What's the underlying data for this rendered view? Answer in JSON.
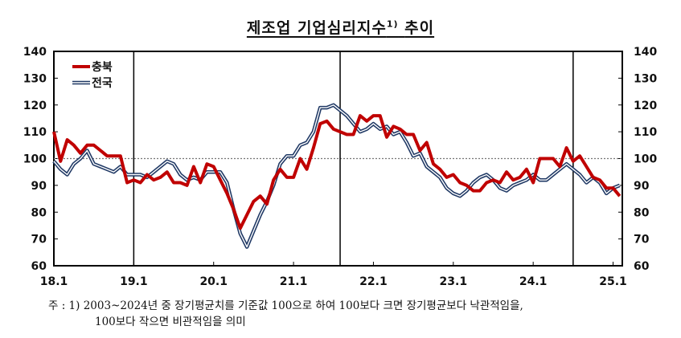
{
  "title": "제조업 기업심리지수",
  "title_superscript": "1)",
  "title_suffix": "추이",
  "legend": [
    {
      "name": "충북",
      "color": "#C00000"
    },
    {
      "name": "전국",
      "color": "#1F3864"
    }
  ],
  "footnote": {
    "prefix": "주 : 1)",
    "line1": "2003~2024년 중 장기평균치를 기준값 100으로 하여 100보다 크면 장기평균보다 낙관적임을,",
    "line2": "100보다 작으면 비관적임을 의미"
  },
  "chart_data": {
    "type": "line",
    "title": "제조업 기업심리지수 추이",
    "xlabel": "",
    "ylabel": "",
    "ylim": [
      60,
      140
    ],
    "yticks": [
      60,
      70,
      80,
      90,
      100,
      110,
      120,
      130,
      140
    ],
    "xtick_labels": [
      "18.1",
      "19.1",
      "20.1",
      "21.1",
      "22.1",
      "23.1",
      "24.1",
      "25.1"
    ],
    "reference_line": {
      "y": 100,
      "style": "dotted"
    },
    "vertical_markers": [
      "19.1",
      "21.8",
      "24.7"
    ],
    "grid": false,
    "legend_position": "upper-left",
    "x_start": "2018.01",
    "x_frequency": "monthly",
    "series": [
      {
        "name": "충북",
        "color": "#C00000",
        "values": [
          110,
          99,
          107,
          105,
          102,
          105,
          105,
          103,
          101,
          101,
          101,
          91,
          92,
          91,
          94,
          92,
          93,
          95,
          91,
          91,
          90,
          97,
          91,
          98,
          97,
          92,
          87,
          81,
          74,
          79,
          84,
          86,
          83,
          92,
          96,
          93,
          93,
          100,
          96,
          104,
          113,
          114,
          111,
          110,
          109,
          109,
          116,
          114,
          116,
          116,
          108,
          112,
          111,
          109,
          109,
          103,
          106,
          98,
          96,
          93,
          94,
          91,
          90,
          88,
          88,
          91,
          92,
          91,
          95,
          92,
          93,
          96,
          91,
          100,
          100,
          100,
          97,
          104,
          99,
          101,
          97,
          93,
          92,
          89,
          89,
          86
        ]
      },
      {
        "name": "전국",
        "color": "#1F3864",
        "values": [
          99,
          96,
          94,
          98,
          100,
          103,
          98,
          97,
          96,
          95,
          97,
          94,
          94,
          94,
          93,
          95,
          97,
          99,
          98,
          94,
          92,
          93,
          92,
          95,
          95,
          95,
          91,
          81,
          72,
          67,
          73,
          79,
          84,
          90,
          98,
          101,
          101,
          105,
          106,
          110,
          119,
          119,
          120,
          118,
          116,
          113,
          110,
          111,
          113,
          111,
          112,
          109,
          110,
          106,
          101,
          102,
          97,
          95,
          93,
          89,
          87,
          86,
          88,
          91,
          93,
          94,
          92,
          89,
          88,
          90,
          91,
          92,
          94,
          92,
          92,
          94,
          96,
          98,
          96,
          94,
          91,
          93,
          91,
          87,
          89,
          90
        ]
      }
    ]
  }
}
